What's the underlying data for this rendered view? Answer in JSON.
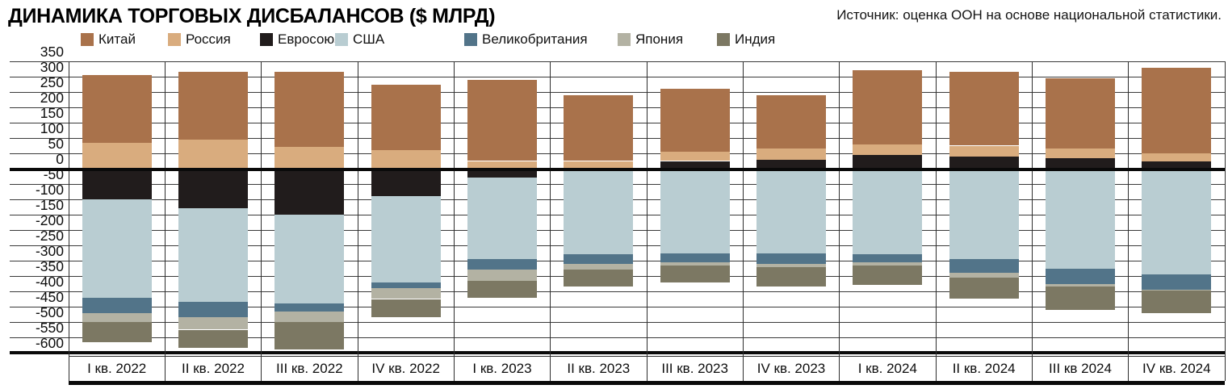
{
  "header": {
    "title": "ДИНАМИКА ТОРГОВЫХ ДИСБАЛАНСОВ ($ МЛРД)",
    "source": "Источник: оценка ООН на основе национальной статистики."
  },
  "chart_data": {
    "type": "bar",
    "stacked": true,
    "title": "ДИНАМИКА ТОРГОВЫХ ДИСБАЛАНСОВ ($ МЛРД)",
    "unit": "$ млрд",
    "grid": true,
    "legend_position": "top",
    "categories": [
      "I кв. 2022",
      "II кв. 2022",
      "III кв. 2022",
      "IV кв. 2022",
      "I кв. 2023",
      "II кв. 2023",
      "III кв. 2023",
      "IV кв. 2023",
      "I кв. 2024",
      "II кв. 2024",
      "III кв 2024",
      "IV кв. 2024"
    ],
    "series": [
      {
        "name": "Китай",
        "color": "#a9724b",
        "values": [
          220,
          220,
          245,
          215,
          265,
          215,
          205,
          175,
          240,
          240,
          230,
          280
        ]
      },
      {
        "name": "Россия",
        "color": "#d9ac7e",
        "values": [
          85,
          95,
          70,
          60,
          25,
          25,
          30,
          35,
          35,
          35,
          30,
          25
        ]
      },
      {
        "name": "Евросоюз",
        "color": "#211c1c",
        "values": [
          -100,
          -130,
          -150,
          -90,
          -30,
          -5,
          25,
          30,
          45,
          40,
          35,
          25
        ]
      },
      {
        "name": "США",
        "color": "#b9cdd2",
        "values": [
          -320,
          -305,
          -290,
          -280,
          -265,
          -275,
          -275,
          -275,
          -280,
          -295,
          -325,
          -345
        ]
      },
      {
        "name": "Великобритания",
        "color": "#527489",
        "values": [
          -50,
          -50,
          -25,
          -20,
          -35,
          -30,
          -30,
          -35,
          -25,
          -45,
          -50,
          -50
        ]
      },
      {
        "name": "Япония",
        "color": "#b3b2a3",
        "values": [
          -30,
          -40,
          -35,
          -35,
          -35,
          -20,
          -10,
          -10,
          -10,
          -15,
          -10,
          -2
        ]
      },
      {
        "name": "Индия",
        "color": "#7c7863",
        "values": [
          -65,
          -60,
          -90,
          -60,
          -55,
          -55,
          -55,
          -65,
          -65,
          -70,
          -75,
          -75
        ]
      }
    ],
    "y_axis": {
      "min": -600,
      "max": 350,
      "step": 50,
      "tick_labels": [
        "350",
        "300",
        "250",
        "200",
        "150",
        "100",
        "50",
        "0",
        "-50",
        "-100",
        "-150",
        "-200",
        "-250",
        "-300",
        "-350",
        "-400",
        "-450",
        "-500",
        "-550",
        "-600"
      ]
    }
  }
}
